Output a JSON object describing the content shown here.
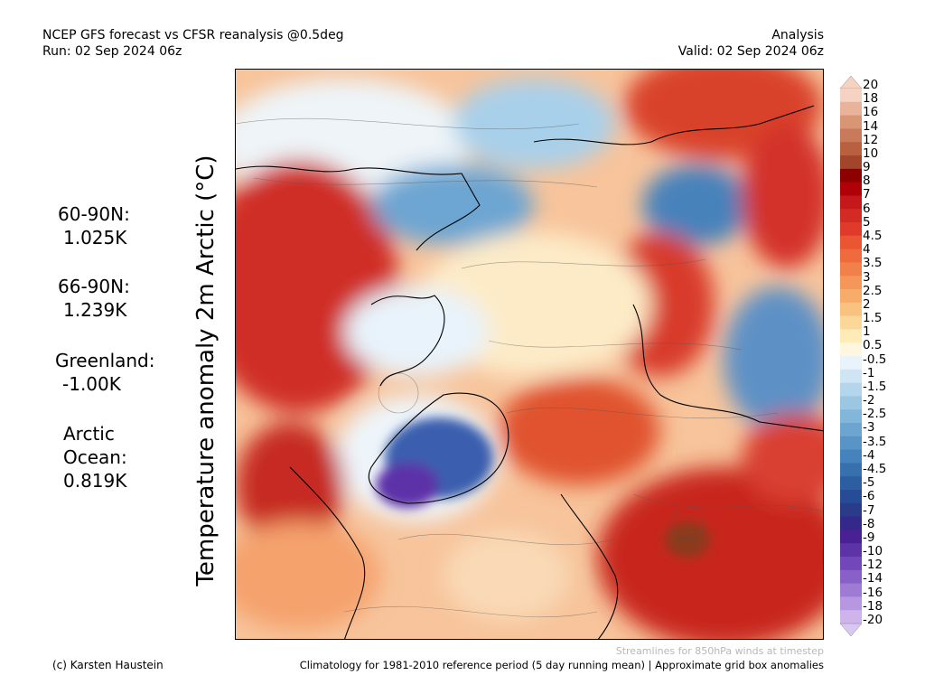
{
  "header": {
    "left_line1": "NCEP GFS forecast vs CFSR reanalysis @0.5deg",
    "left_line2": "Run: 02 Sep 2024 06z",
    "right_line1": "Analysis",
    "right_line2": "Valid: 02 Sep 2024 06z"
  },
  "stats": [
    {
      "label": "60-90N:",
      "value": "1.025K"
    },
    {
      "label": "66-90N:",
      "value": "1.239K"
    },
    {
      "label": "Greenland:",
      "value": "-1.00K"
    },
    {
      "label1": "Arctic",
      "label2": "Ocean:",
      "value": "0.819K"
    }
  ],
  "vertical_title": "Temperature anomaly 2m Arctic (°C)",
  "colorbar": {
    "labels": [
      "20",
      "18",
      "16",
      "14",
      "12",
      "10",
      "9",
      "8",
      "7",
      "6",
      "5",
      "4.5",
      "4",
      "3.5",
      "3",
      "2.5",
      "2",
      "1.5",
      "1",
      "0.5",
      "-0.5",
      "-1",
      "-1.5",
      "-2",
      "-2.5",
      "-3",
      "-3.5",
      "-4",
      "-4.5",
      "-5",
      "-6",
      "-7",
      "-8",
      "-9",
      "-10",
      "-12",
      "-14",
      "-16",
      "-18",
      "-20"
    ],
    "colors": [
      "#f5d2c2",
      "#e8b39a",
      "#d99675",
      "#c97a5a",
      "#b9603f",
      "#a3452b",
      "#8e0000",
      "#b00008",
      "#c4181a",
      "#d32a23",
      "#e03a2b",
      "#ea5532",
      "#ef6a3c",
      "#f2804a",
      "#f5965a",
      "#f8ac6b",
      "#fac27f",
      "#fcd898",
      "#feebb6",
      "#fff6e0",
      "#e8f3fb",
      "#cfe5f4",
      "#b4d6ec",
      "#9bc7e3",
      "#83b7da",
      "#6ca6d0",
      "#5894c6",
      "#4682bb",
      "#3870ae",
      "#2c5ea2",
      "#264c96",
      "#2a3b8a",
      "#34298a",
      "#4a2195",
      "#5d33a8",
      "#7247ba",
      "#8960c8",
      "#a07bd4",
      "#b797e0",
      "#cfb4eb"
    ],
    "top_triangle_color": "#f5d2c2",
    "bottom_triangle_color": "#d9c6f3"
  },
  "footer": {
    "streamline_note": "Streamlines for 850hPa winds at timestep",
    "credit": "(c) Karsten Haustein",
    "climatology": "Climatology for 1981-2010 reference period (5 day running mean) | Approximate grid box anomalies"
  }
}
